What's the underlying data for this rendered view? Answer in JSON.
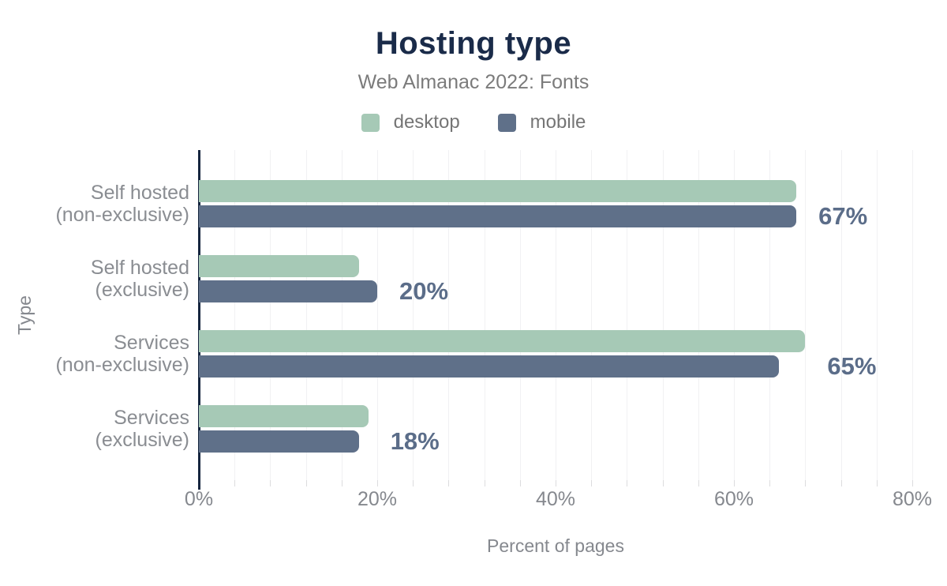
{
  "header": {
    "title": "Hosting type",
    "subtitle": "Web Almanac 2022: Fonts"
  },
  "chart_data": {
    "type": "bar",
    "orientation": "horizontal",
    "title": "Hosting type",
    "subtitle": "Web Almanac 2022: Fonts",
    "categories": [
      "Self hosted (non-exclusive)",
      "Self hosted (exclusive)",
      "Services (non-exclusive)",
      "Services (exclusive)"
    ],
    "category_lines": [
      [
        "Self hosted",
        "(non-exclusive)"
      ],
      [
        "Self hosted",
        "(exclusive)"
      ],
      [
        "Services",
        "(non-exclusive)"
      ],
      [
        "Services",
        "(exclusive)"
      ]
    ],
    "series": [
      {
        "name": "desktop",
        "color": "#a6c9b6",
        "values": [
          67,
          18,
          68,
          19
        ]
      },
      {
        "name": "mobile",
        "color": "#5f7089",
        "values": [
          67,
          20,
          65,
          18
        ]
      }
    ],
    "value_labels": [
      "67%",
      "20%",
      "65%",
      "18%"
    ],
    "xlabel": "Percent of pages",
    "ylabel": "Type",
    "xlim": [
      0,
      80
    ],
    "xticks": [
      {
        "value": 0,
        "label": "0%"
      },
      {
        "value": 20,
        "label": "20%"
      },
      {
        "value": 40,
        "label": "40%"
      },
      {
        "value": 60,
        "label": "60%"
      },
      {
        "value": 80,
        "label": "80%"
      }
    ],
    "grid": {
      "vertical": true,
      "minor_step_percent": 4
    },
    "legend_position": "top"
  },
  "colors": {
    "title_navy": "#1a2b49",
    "axis_line_navy": "#16263f",
    "desktop_green": "#a6c9b6",
    "mobile_slate": "#5f7089",
    "value_label_slate": "#5b6d89",
    "axis_text_gray": "#85888e",
    "subtitle_gray": "#7b7b7b",
    "gridline_gray": "#f1f1f3"
  }
}
